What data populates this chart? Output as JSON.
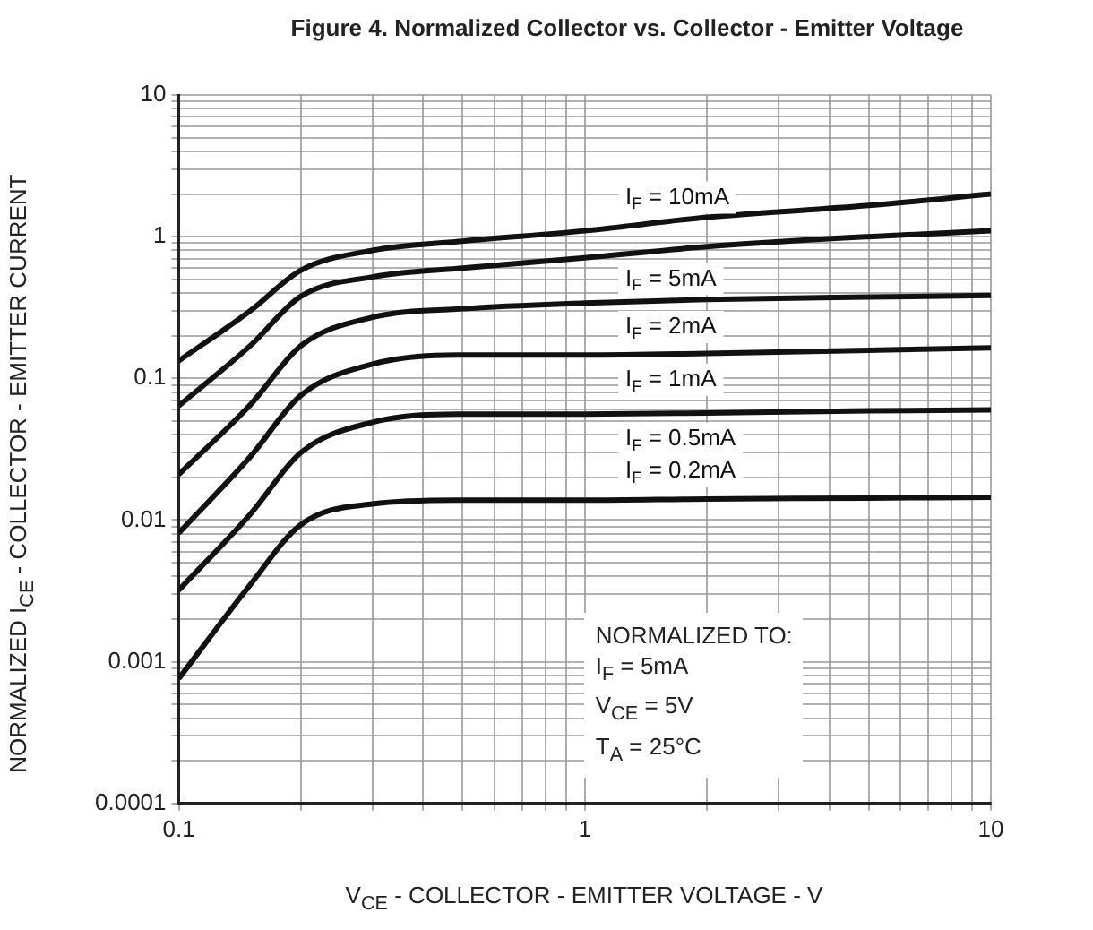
{
  "chart_data": {
    "type": "line",
    "title": "Figure 4. Normalized Collector vs. Collector - Emitter Voltage",
    "xlabel": "V$_{CE}$ - COLLECTOR - EMITTER VOLTAGE - V",
    "ylabel": "NORMALIZED I$_{CE}$ - COLLECTOR - EMITTER CURRENT",
    "x": [
      0.1,
      0.15,
      0.2,
      0.3,
      0.5,
      1,
      2,
      5,
      10
    ],
    "series": [
      {
        "name": "I$_{F}$ = 10mA",
        "color": "#111111",
        "values": [
          0.133,
          0.3,
          0.58,
          0.8,
          0.93,
          1.1,
          1.37,
          1.66,
          2.0
        ]
      },
      {
        "name": "I$_{F}$ = 5mA",
        "color": "#111111",
        "values": [
          0.064,
          0.17,
          0.38,
          0.52,
          0.6,
          0.71,
          0.85,
          1.0,
          1.1
        ]
      },
      {
        "name": "I$_{F}$ = 2mA",
        "color": "#111111",
        "values": [
          0.021,
          0.065,
          0.17,
          0.27,
          0.31,
          0.34,
          0.36,
          0.375,
          0.385
        ]
      },
      {
        "name": "I$_{F}$ = 1mA",
        "color": "#111111",
        "values": [
          0.0081,
          0.028,
          0.076,
          0.126,
          0.146,
          0.146,
          0.15,
          0.158,
          0.164
        ]
      },
      {
        "name": "I$_{F}$ = 0.5mA",
        "color": "#111111",
        "values": [
          0.0032,
          0.011,
          0.03,
          0.049,
          0.056,
          0.056,
          0.057,
          0.059,
          0.06
        ]
      },
      {
        "name": "I$_{F}$ = 0.2mA",
        "color": "#111111",
        "values": [
          0.00076,
          0.0035,
          0.0093,
          0.013,
          0.0138,
          0.0138,
          0.0141,
          0.0143,
          0.0145
        ]
      }
    ],
    "log": "xy",
    "xlim": [
      0.1,
      10
    ],
    "ylim": [
      0.0001,
      10
    ],
    "xticks": [
      0.1,
      {
        "value": 0.2,
        "label": null
      },
      {
        "value": 0.3,
        "label": null
      },
      {
        "value": 0.4,
        "label": null
      },
      {
        "value": 0.5,
        "label": null
      },
      {
        "value": 0.6,
        "label": null
      },
      {
        "value": 0.7,
        "label": null
      },
      {
        "value": 0.8,
        "label": null
      },
      {
        "value": 0.9,
        "label": null
      },
      1,
      {
        "value": 2,
        "label": null
      },
      {
        "value": 3,
        "label": null
      },
      {
        "value": 4,
        "label": null
      },
      {
        "value": 5,
        "label": null
      },
      {
        "value": 6,
        "label": null
      },
      {
        "value": 7,
        "label": null
      },
      {
        "value": 8,
        "label": null
      },
      {
        "value": 9,
        "label": null
      },
      10
    ],
    "yticks": [
      0.0001,
      {
        "value": 0.0002,
        "label": null
      },
      {
        "value": 0.0003,
        "label": null
      },
      {
        "value": 0.0004,
        "label": null
      },
      {
        "value": 0.0005,
        "label": null
      },
      {
        "value": 0.0006,
        "label": null
      },
      {
        "value": 0.0007,
        "label": null
      },
      {
        "value": 0.0008,
        "label": null
      },
      {
        "value": 0.0009,
        "label": null
      },
      0.001,
      {
        "value": 0.002,
        "label": null
      },
      {
        "value": 0.003,
        "label": null
      },
      {
        "value": 0.004,
        "label": null
      },
      {
        "value": 0.005,
        "label": null
      },
      {
        "value": 0.006,
        "label": null
      },
      {
        "value": 0.007,
        "label": null
      },
      {
        "value": 0.008,
        "label": null
      },
      {
        "value": 0.009,
        "label": null
      },
      0.01,
      {
        "value": 0.02,
        "label": null
      },
      {
        "value": 0.03,
        "label": null
      },
      {
        "value": 0.04,
        "label": null
      },
      {
        "value": 0.05,
        "label": null
      },
      {
        "value": 0.06,
        "label": null
      },
      {
        "value": 0.07,
        "label": null
      },
      {
        "value": 0.08,
        "label": null
      },
      {
        "value": 0.09,
        "label": null
      },
      0.1,
      {
        "value": 0.2,
        "label": null
      },
      {
        "value": 0.3,
        "label": null
      },
      {
        "value": 0.4,
        "label": null
      },
      {
        "value": 0.5,
        "label": null
      },
      {
        "value": 0.6,
        "label": null
      },
      {
        "value": 0.7,
        "label": null
      },
      {
        "value": 0.8,
        "label": null
      },
      {
        "value": 0.9,
        "label": null
      },
      1,
      {
        "value": 2,
        "label": null
      },
      {
        "value": 3,
        "label": null
      },
      {
        "value": 4,
        "label": null
      },
      {
        "value": 5,
        "label": null
      },
      {
        "value": 6,
        "label": null
      },
      {
        "value": 7,
        "label": null
      },
      {
        "value": 8,
        "label": null
      },
      {
        "value": 9,
        "label": null
      },
      10
    ],
    "grid": true,
    "marker": "none",
    "line_style": "solid",
    "annotations": [
      "NORMALIZED TO:",
      "I$_{F}$ = 5mA",
      "V$_{CE}$ = 5V",
      "T$_{A}$ = 25°C"
    ]
  }
}
